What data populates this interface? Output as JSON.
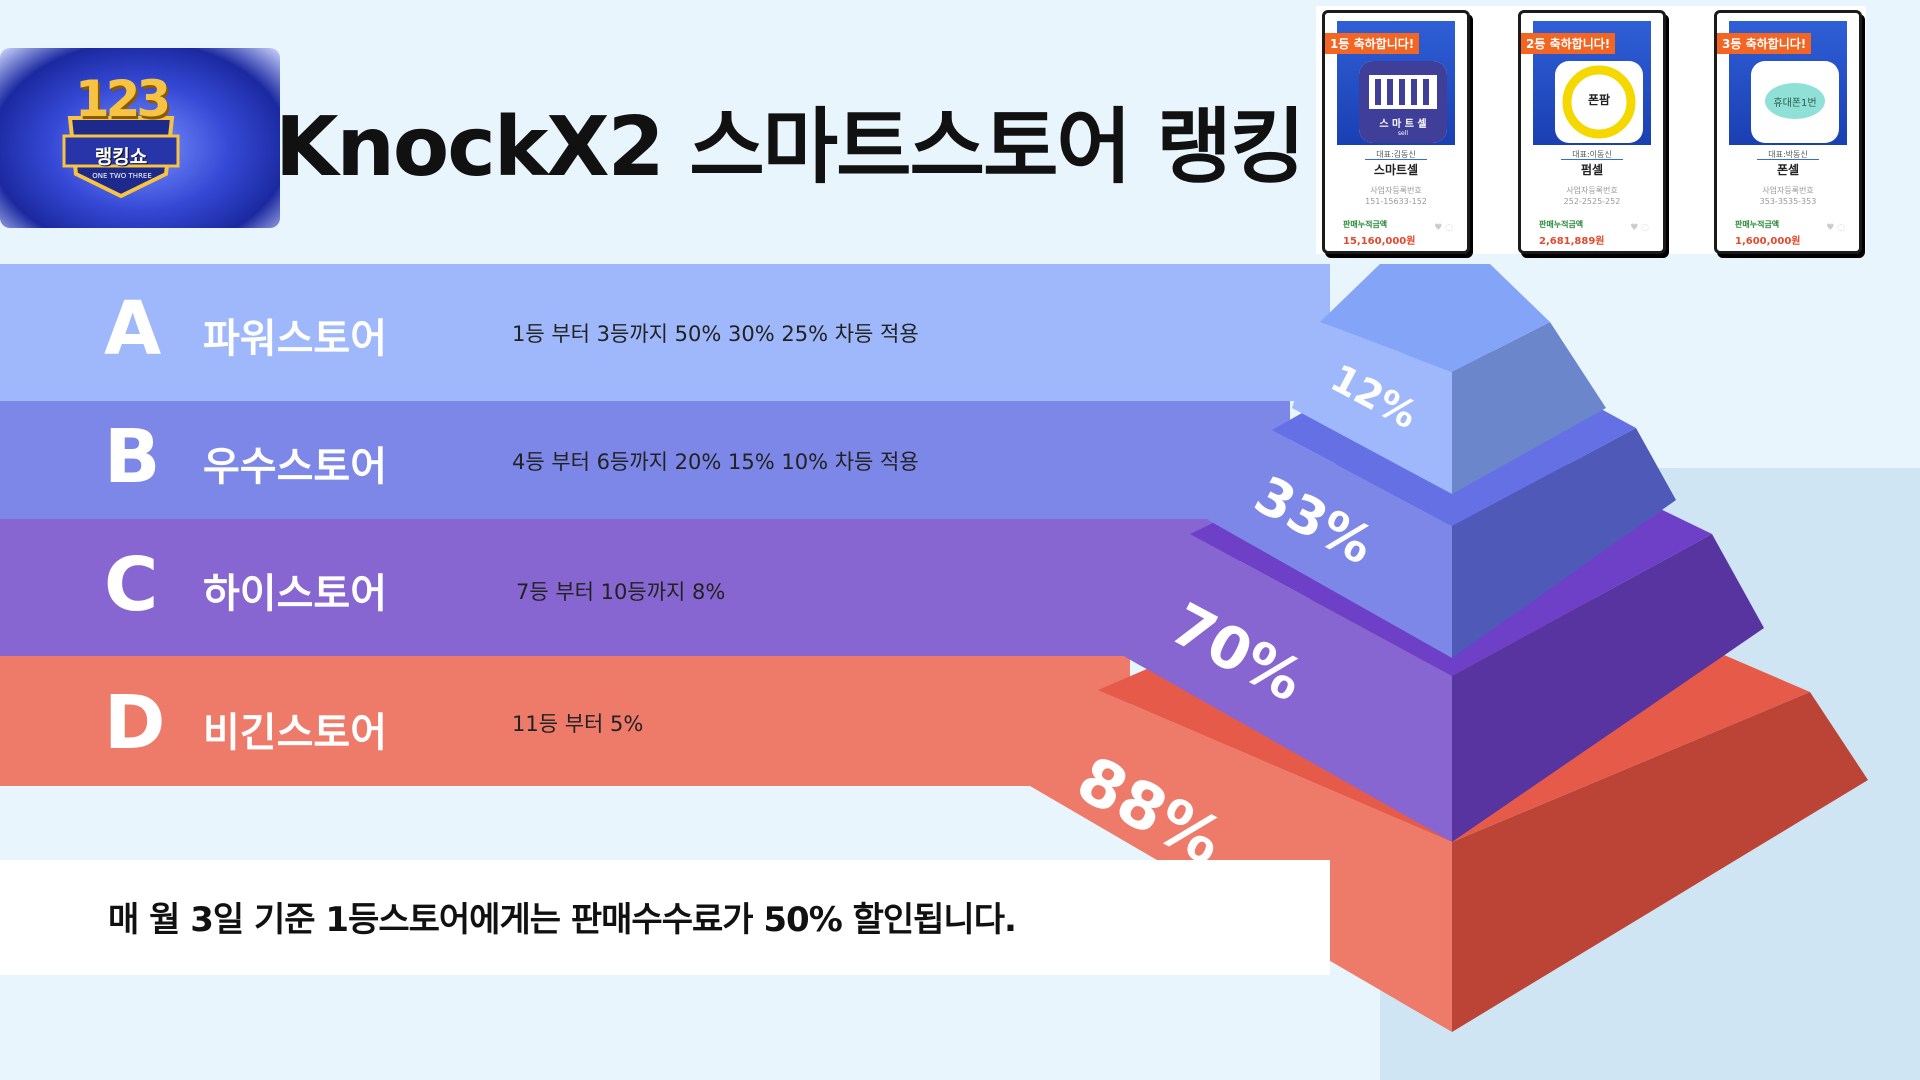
{
  "header": {
    "title": "KnockX2 스마트스토어 랭킹",
    "logo": {
      "numbers": "123",
      "name": "랭킹쇼",
      "subtitle": "ONE TWO THREE"
    }
  },
  "winners": [
    {
      "badge": "1등 축하합니다!",
      "logo_text": "스 마 트 셀",
      "logo_sub": "sell",
      "owner": "대표:김동신",
      "shop": "스마트셀",
      "biz_label": "사업자등록번호",
      "biz_no": "151-15633-152",
      "sales_label": "판매누적금액",
      "sales": "15,160,000원"
    },
    {
      "badge": "2등 축하합니다!",
      "logo_text": "폰팜",
      "owner": "대표:이동신",
      "shop": "펌셀",
      "biz_label": "사업자등록번호",
      "biz_no": "252-2525-252",
      "sales_label": "판매누적금액",
      "sales": "2,681,889원"
    },
    {
      "badge": "3등 축하합니다!",
      "logo_text": "휴대폰1번",
      "owner": "대표:박동신",
      "shop": "폰셀",
      "biz_label": "사업자등록번호",
      "biz_no": "353-3535-353",
      "sales_label": "판매누적금액",
      "sales": "1,600,000원"
    }
  ],
  "tiers": [
    {
      "letter": "A",
      "name": "파워스토어",
      "desc": "1등 부터 3등까지 50% 30% 25% 차등 적용",
      "color": "#9fb8fc"
    },
    {
      "letter": "B",
      "name": "우수스토어",
      "desc": "4등 부터 6등까지 20% 15% 10% 차등 적용",
      "color": "#7d87e8"
    },
    {
      "letter": "C",
      "name": "하이스토어",
      "desc": "7등 부터 10등까지 8%",
      "color": "#8766d2"
    },
    {
      "letter": "D",
      "name": "비긴스토어",
      "desc": "11등 부터 5%",
      "color": "#ee7b6a"
    }
  ],
  "pyramid": {
    "labels": [
      "12%",
      "33%",
      "70%",
      "88%"
    ]
  },
  "note": "매 월 3일 기준 1등스토어에게는 판매수수료가  50% 할인됩니다."
}
